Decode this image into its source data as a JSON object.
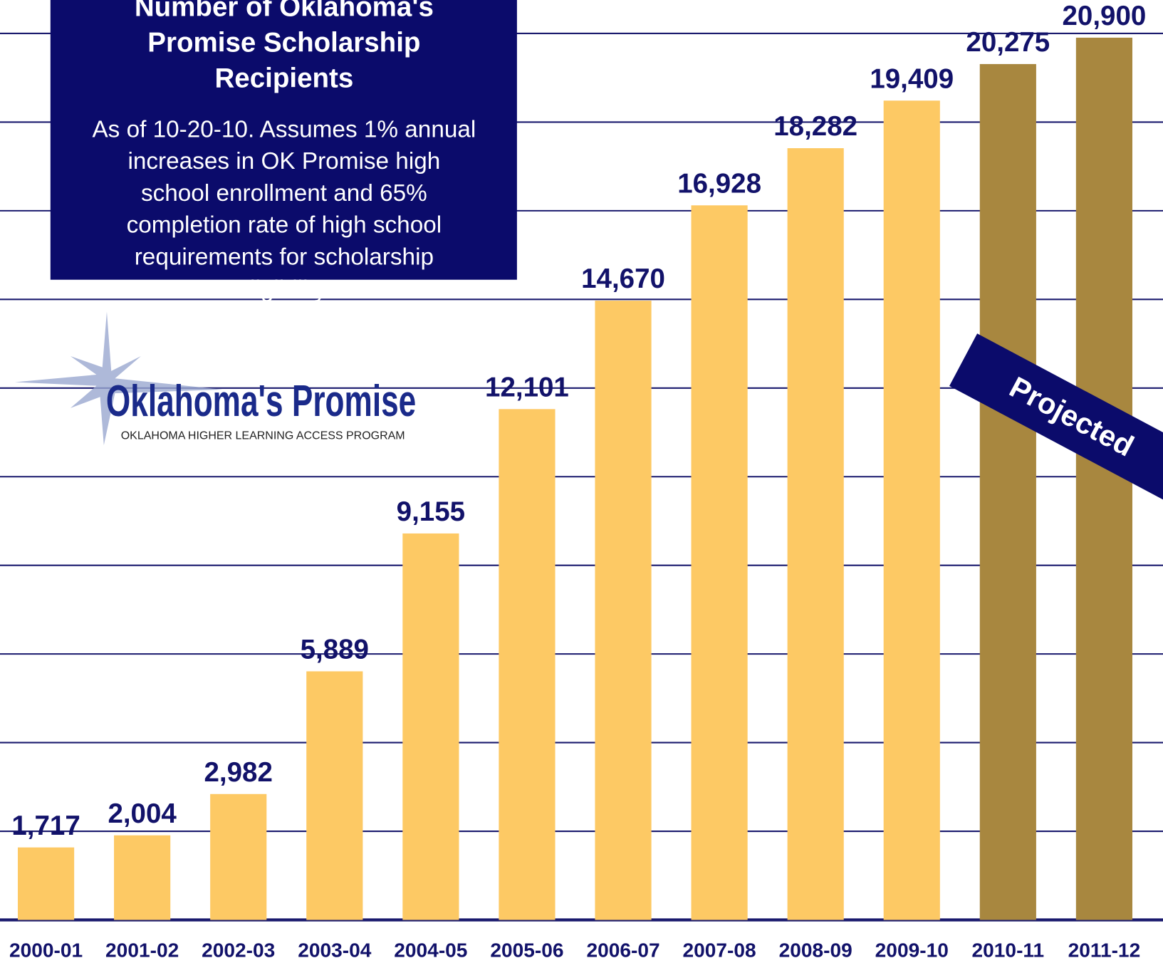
{
  "chart_data": {
    "type": "bar",
    "title": "Number of Oklahoma's Promise Scholarship Recipients",
    "subtitle": "As of 10-20-10.  Assumes 1% annual increases in OK Promise high school enrollment and 65% completion rate of high school requirements for scholarship eligibility.",
    "logo_title": "Oklahoma's Promise",
    "logo_subtitle": "OKLAHOMA HIGHER LEARNING ACCESS PROGRAM",
    "annotation": "Projected",
    "categories": [
      "2000-01",
      "2001-02",
      "2002-03",
      "2003-04",
      "2004-05",
      "2005-06",
      "2006-07",
      "2007-08",
      "2008-09",
      "2009-10",
      "2010-11",
      "2011-12"
    ],
    "values": [
      1717,
      2004,
      2982,
      5889,
      9155,
      12101,
      14670,
      16928,
      18282,
      19409,
      20275,
      20900
    ],
    "value_labels": [
      "1,717",
      "2,004",
      "2,982",
      "5,889",
      "9,155",
      "12,101",
      "14,670",
      "16,928",
      "18,282",
      "19,409",
      "20,275",
      "20,900"
    ],
    "colors": [
      "#fdc964",
      "#fdc964",
      "#fdc964",
      "#fdc964",
      "#fdc964",
      "#fdc964",
      "#fdc964",
      "#fdc964",
      "#fdc964",
      "#fdc964",
      "#a8873f",
      "#a8873f"
    ],
    "ylim": [
      0,
      21000
    ],
    "yticks": [
      0,
      2100,
      4200,
      6300,
      8400,
      10500,
      12600,
      14700,
      16800,
      18900,
      21000
    ],
    "grid": true
  }
}
